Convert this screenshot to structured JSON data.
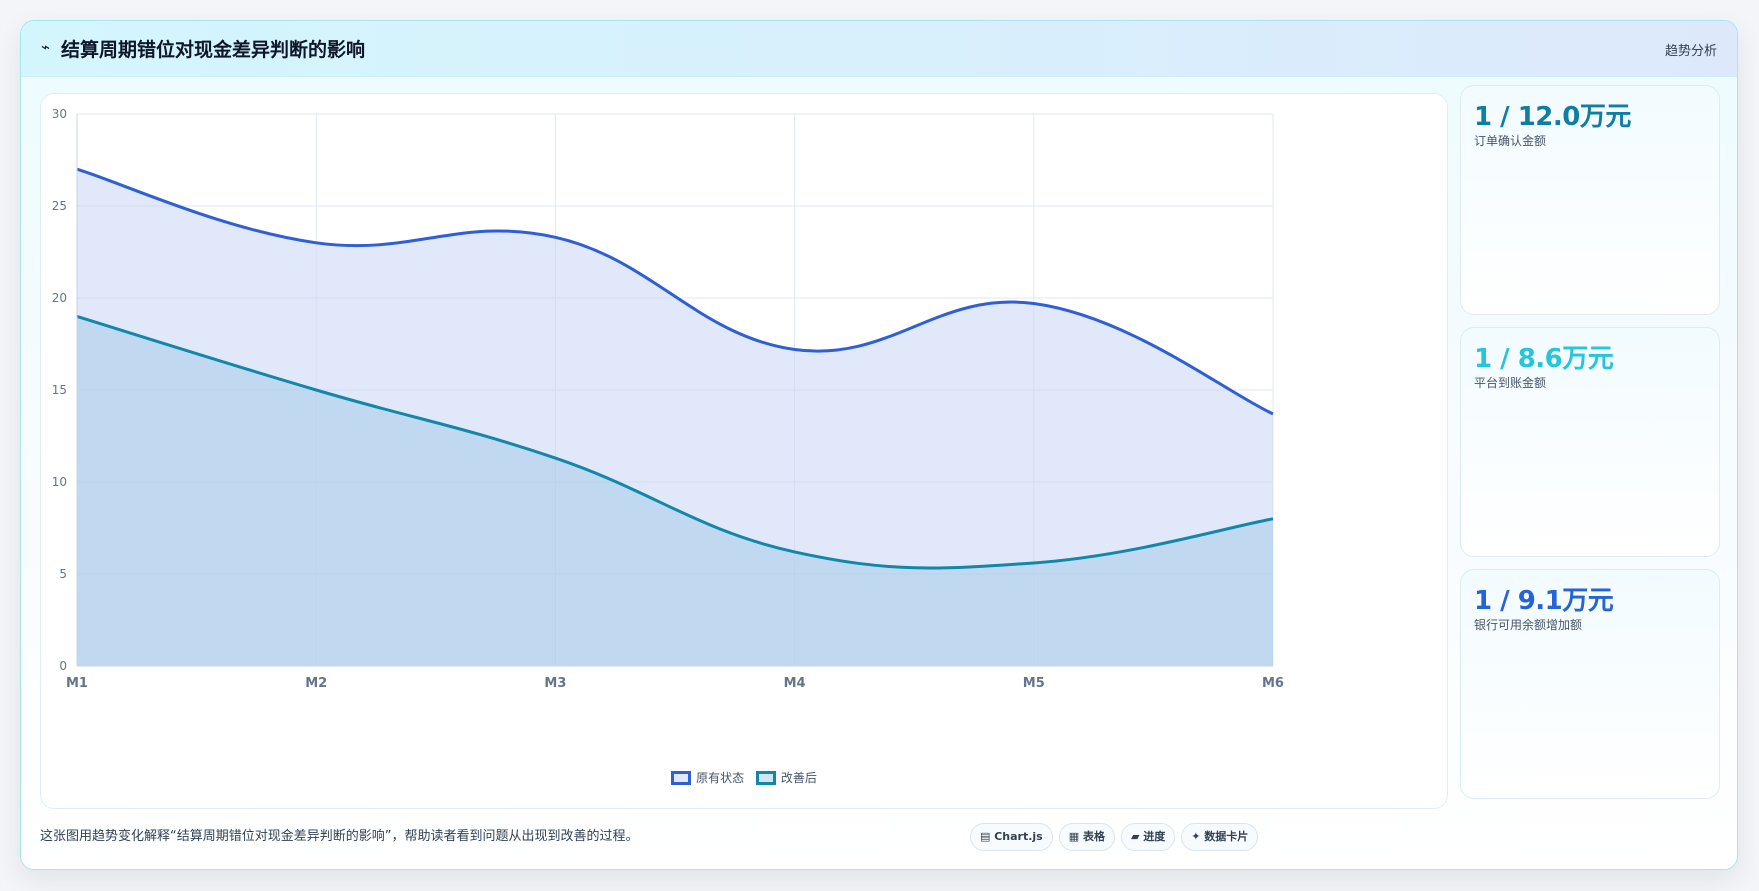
{
  "header": {
    "icon": "⌁",
    "title": "结算周期错位对现金差异判断的影响",
    "tag": "趋势分析"
  },
  "chart_data": {
    "type": "area",
    "categories": [
      "M1",
      "M2",
      "M3",
      "M4",
      "M5",
      "M6"
    ],
    "y_ticks": [
      "0",
      "5",
      "10",
      "15",
      "20",
      "25",
      "30"
    ],
    "ylim": [
      0,
      30
    ],
    "grid": true,
    "legend_position": "bottom",
    "series": [
      {
        "name": "原有状态",
        "values": [
          27,
          23,
          23.3,
          17.2,
          19.7,
          13.7
        ],
        "color": "#2f5fd5",
        "fill": "rgba(200,214,246,0.55)"
      },
      {
        "name": "改善后",
        "values": [
          19,
          15,
          11.3,
          6.2,
          5.6,
          8.0
        ],
        "color": "#1287a8",
        "fill": "rgba(154,199,228,0.45)"
      }
    ]
  },
  "metrics": [
    {
      "value": "1 / 12.0万元",
      "label": "订单确认金额",
      "color": "#0e7fa3"
    },
    {
      "value": "1 / 8.6万元",
      "label": "平台到账金额",
      "color": "#26c6da"
    },
    {
      "value": "1 / 9.1万元",
      "label": "银行可用余额增加额",
      "color": "#2563d6"
    }
  ],
  "footer": {
    "description": "这张图用趋势变化解释“结算周期错位对现金差异判断的影响”，帮助读者看到问题从出现到改善的过程。",
    "chips": [
      "▤ Chart.js",
      "▦ 表格",
      "▰ 进度",
      "✦ 数据卡片"
    ]
  }
}
